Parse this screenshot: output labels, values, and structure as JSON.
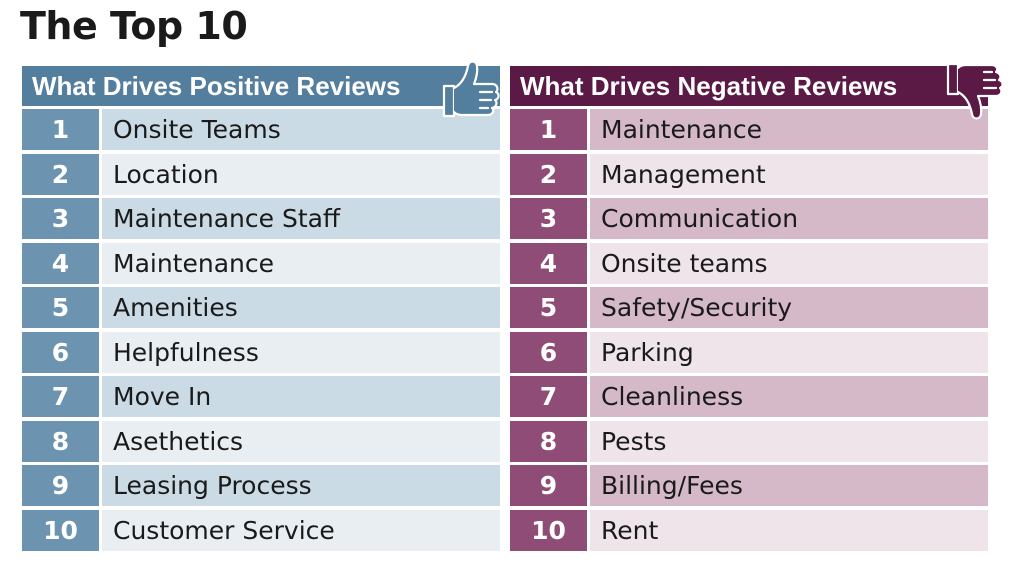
{
  "title": "The Top 10",
  "positive": {
    "header": "What Drives Positive Reviews",
    "icon": "thumbs-up-icon",
    "color": "#537e9e",
    "items": [
      {
        "rank": "1",
        "label": "Onsite Teams"
      },
      {
        "rank": "2",
        "label": "Location"
      },
      {
        "rank": "3",
        "label": "Maintenance Staff"
      },
      {
        "rank": "4",
        "label": "Maintenance"
      },
      {
        "rank": "5",
        "label": "Amenities"
      },
      {
        "rank": "6",
        "label": "Helpfulness"
      },
      {
        "rank": "7",
        "label": "Move In"
      },
      {
        "rank": "8",
        "label": "Asethetics"
      },
      {
        "rank": "9",
        "label": "Leasing Process"
      },
      {
        "rank": "10",
        "label": "Customer Service"
      }
    ]
  },
  "negative": {
    "header": "What Drives Negative Reviews",
    "icon": "thumbs-down-icon",
    "color": "#5a1a45",
    "items": [
      {
        "rank": "1",
        "label": "Maintenance"
      },
      {
        "rank": "2",
        "label": "Management"
      },
      {
        "rank": "3",
        "label": "Communication"
      },
      {
        "rank": "4",
        "label": "Onsite teams"
      },
      {
        "rank": "5",
        "label": "Safety/Security"
      },
      {
        "rank": "6",
        "label": "Parking"
      },
      {
        "rank": "7",
        "label": "Cleanliness"
      },
      {
        "rank": "8",
        "label": "Pests"
      },
      {
        "rank": "9",
        "label": "Billing/Fees"
      },
      {
        "rank": "10",
        "label": "Rent"
      }
    ]
  }
}
